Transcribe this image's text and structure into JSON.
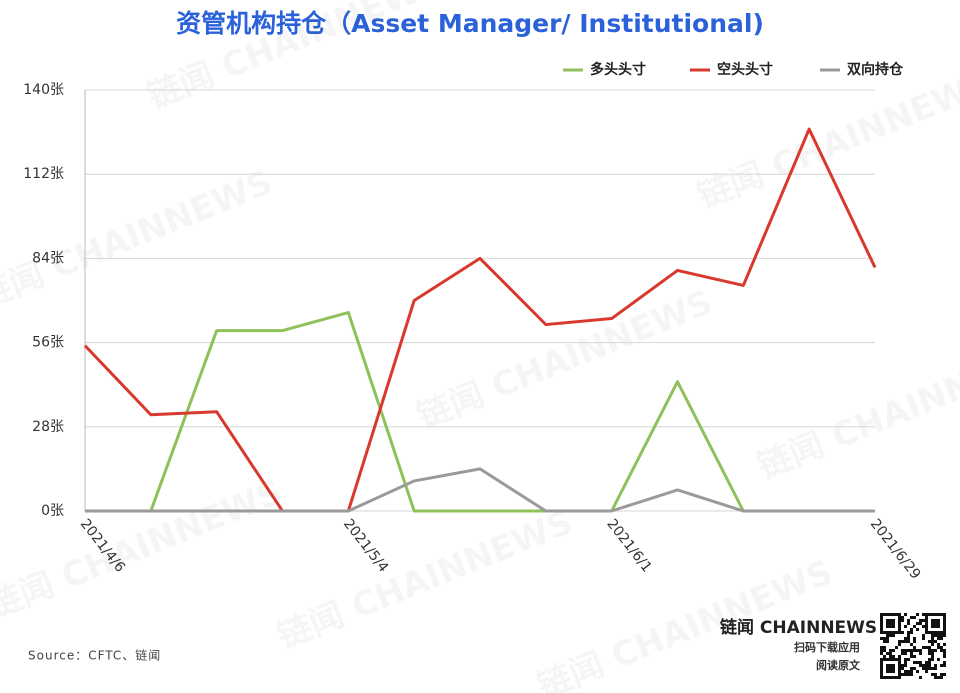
{
  "chart_data": {
    "type": "line",
    "title": "资管机构持仓（Asset Manager/ Institutional)",
    "categories": [
      "2021/4/6",
      null,
      null,
      null,
      "2021/5/4",
      null,
      null,
      null,
      "2021/6/1",
      null,
      null,
      null,
      "2021/6/29"
    ],
    "series": [
      {
        "name": "多头头寸",
        "color": "#8fc15a",
        "values": [
          0,
          0,
          60,
          60,
          66,
          0,
          0,
          0,
          0,
          43,
          0,
          0,
          0
        ]
      },
      {
        "name": "空头头寸",
        "color": "#d9382c",
        "values": [
          55,
          32,
          33,
          0,
          0,
          70,
          84,
          62,
          64,
          80,
          75,
          127,
          81
        ]
      },
      {
        "name": "双向持仓",
        "color": "#9a9a9a",
        "values": [
          0,
          0,
          0,
          0,
          0,
          10,
          14,
          0,
          0,
          7,
          0,
          0,
          0
        ]
      }
    ],
    "ylim": [
      0,
      140
    ],
    "yticks": [
      {
        "value": 0,
        "label": "0张"
      },
      {
        "value": 28,
        "label": "28张"
      },
      {
        "value": 56,
        "label": "56张"
      },
      {
        "value": 84,
        "label": "84张"
      },
      {
        "value": 112,
        "label": "112张"
      },
      {
        "value": 140,
        "label": "140张"
      }
    ],
    "grid": true,
    "legend": "top-right",
    "source": "Source：CFTC、链闻",
    "watermark": "链闻 CHAINNEWS",
    "brand": "链闻 CHAINNEWS",
    "brand_line1": "扫码下载应用",
    "brand_line2": "阅读原文"
  }
}
